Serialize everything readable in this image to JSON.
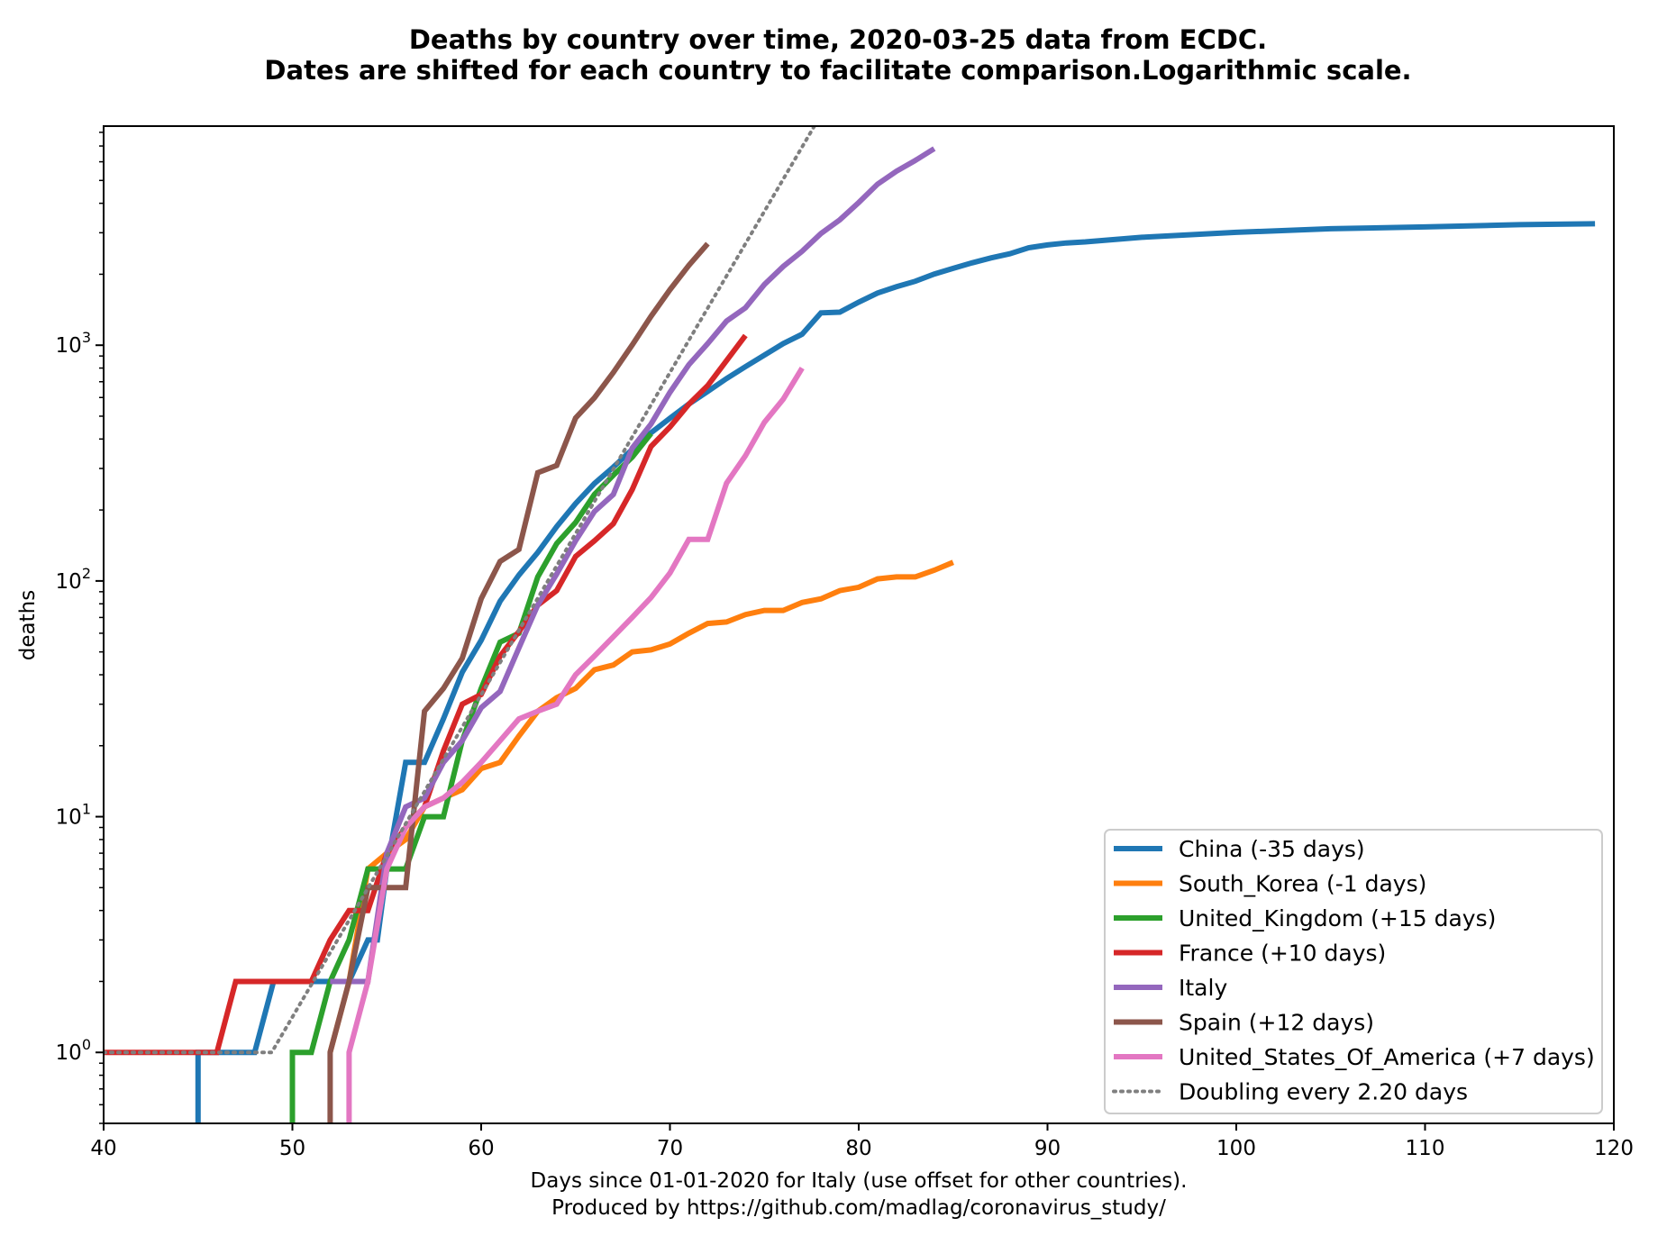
{
  "chart_data": {
    "type": "line",
    "title": "Deaths by country over time, 2020-03-25 data from ECDC.",
    "subtitle": "Dates are shifted for each country to facilitate comparison.Logarithmic scale.",
    "xlabel": "Days since 01-01-2020 for Italy (use offset for other countries).",
    "xlabel2": "Produced by https://github.com/madlag/coronavirus_study/",
    "ylabel": "deaths",
    "xlim": [
      40,
      120
    ],
    "ylim": [
      0.5,
      8500
    ],
    "yscale": "log",
    "grid": false,
    "legend_position": "lower-right",
    "x_ticks": [
      40,
      50,
      60,
      70,
      80,
      90,
      100,
      110,
      120
    ],
    "y_ticks": [
      {
        "value": 1,
        "base": "10",
        "exp": "0"
      },
      {
        "value": 10,
        "base": "10",
        "exp": "1"
      },
      {
        "value": 100,
        "base": "10",
        "exp": "2"
      },
      {
        "value": 1000,
        "base": "10",
        "exp": "3"
      }
    ],
    "series": [
      {
        "name": "China (-35 days)",
        "color": "#1f77b4",
        "dash": "",
        "x": [
          45,
          45,
          48,
          49,
          50,
          51,
          52,
          53,
          54,
          54.5,
          55,
          56,
          57,
          58,
          59,
          60,
          61,
          62,
          63,
          64,
          65,
          66,
          67,
          68,
          69,
          70,
          71,
          72,
          73,
          74,
          75,
          76,
          77,
          78,
          79,
          80,
          81,
          82,
          83,
          84,
          85,
          86,
          87,
          88,
          89,
          90,
          91,
          92,
          95,
          100,
          105,
          110,
          115,
          119
        ],
        "y": [
          0.5,
          1,
          1,
          2,
          2,
          2,
          2,
          2,
          3,
          3,
          6,
          17,
          17,
          26,
          41,
          56,
          82,
          106,
          132,
          170,
          213,
          259,
          304,
          361,
          425,
          490,
          563,
          637,
          722,
          811,
          908,
          1016,
          1113,
          1371,
          1381,
          1523,
          1665,
          1770,
          1868,
          2004,
          2118,
          2236,
          2345,
          2442,
          2592,
          2663,
          2715,
          2744,
          2870,
          3013,
          3120,
          3175,
          3245,
          3276
        ]
      },
      {
        "name": "South_Korea (-1 days)",
        "color": "#ff7f0e",
        "dash": "",
        "x": [
          52,
          53,
          54,
          55,
          56,
          57,
          58,
          59,
          60,
          61,
          62,
          63,
          64,
          65,
          66,
          67,
          68,
          69,
          70,
          71,
          72,
          73,
          74,
          75,
          76,
          77,
          78,
          79,
          80,
          81,
          82,
          83,
          84,
          85
        ],
        "y": [
          1,
          2,
          6,
          7,
          8,
          11,
          12,
          13,
          16,
          17,
          22,
          28,
          32,
          35,
          42,
          44,
          50,
          51,
          54,
          60,
          66,
          67,
          72,
          75,
          75,
          81,
          84,
          91,
          94,
          102,
          104,
          104,
          111,
          120
        ]
      },
      {
        "name": "United_Kingdom (+15 days)",
        "color": "#2ca02c",
        "dash": "",
        "x": [
          50,
          50,
          51,
          52,
          53,
          54,
          55,
          56,
          57,
          58,
          59,
          60,
          61,
          62,
          63,
          64,
          65,
          66,
          67,
          68,
          69
        ],
        "y": [
          0.5,
          1,
          1,
          2,
          3,
          6,
          6,
          6,
          10,
          10,
          21,
          35,
          55,
          60,
          104,
          144,
          177,
          233,
          281,
          335,
          422
        ]
      },
      {
        "name": "France (+10 days)",
        "color": "#d62728",
        "dash": "",
        "x": [
          40,
          46,
          47,
          48,
          49,
          50,
          51,
          52,
          53,
          54,
          55,
          56,
          57,
          58,
          59,
          60,
          61,
          62,
          63,
          64,
          65,
          66,
          67,
          68,
          69,
          70,
          71,
          72,
          73,
          74
        ],
        "y": [
          1,
          1,
          2,
          2,
          2,
          2,
          2,
          3,
          4,
          4,
          7,
          9,
          11,
          19,
          30,
          33,
          48,
          61,
          79,
          91,
          127,
          148,
          175,
          244,
          372,
          450,
          562,
          674,
          860,
          1100
        ]
      },
      {
        "name": "Italy",
        "color": "#9467bd",
        "dash": "",
        "x": [
          52,
          53,
          54,
          55,
          56,
          57,
          58,
          59,
          60,
          61,
          62,
          63,
          64,
          65,
          66,
          67,
          68,
          69,
          70,
          71,
          72,
          73,
          74,
          75,
          76,
          77,
          78,
          79,
          80,
          81,
          82,
          83,
          84
        ],
        "y": [
          2,
          2,
          2,
          7,
          11,
          12,
          17,
          21,
          29,
          34,
          52,
          79,
          107,
          148,
          197,
          233,
          366,
          463,
          631,
          827,
          1016,
          1266,
          1441,
          1809,
          2158,
          2503,
          2978,
          3405,
          4032,
          4825,
          5476,
          6077,
          6820
        ]
      },
      {
        "name": "Spain (+12 days)",
        "color": "#8c564b",
        "dash": "",
        "x": [
          52,
          52,
          53,
          54,
          55,
          56,
          57,
          58,
          59,
          60,
          61,
          62,
          63,
          64,
          65,
          66,
          67,
          68,
          69,
          70,
          71,
          72
        ],
        "y": [
          0.5,
          1,
          2,
          5,
          5,
          5,
          28,
          35,
          47,
          84,
          121,
          136,
          288,
          309,
          491,
          598,
          767,
          1002,
          1326,
          1720,
          2182,
          2696
        ]
      },
      {
        "name": "United_States_Of_America (+7 days)",
        "color": "#e377c2",
        "dash": "",
        "x": [
          53,
          53,
          54,
          55,
          56,
          57,
          58,
          59,
          60,
          61,
          62,
          63,
          64,
          65,
          66,
          67,
          68,
          69,
          70,
          71,
          72,
          73,
          74,
          75,
          76,
          77
        ],
        "y": [
          0.5,
          1,
          2,
          6,
          9,
          11,
          12,
          14,
          17,
          21,
          26,
          28,
          30,
          40,
          48,
          58,
          70,
          85,
          108,
          150,
          150,
          260,
          340,
          471,
          590,
          800
        ]
      },
      {
        "name": "Doubling every 2.20 days",
        "color": "#7f7f7f",
        "dash": "2,6",
        "x": [
          40,
          48.9,
          78
        ],
        "y": [
          1,
          1,
          9500
        ]
      }
    ]
  }
}
